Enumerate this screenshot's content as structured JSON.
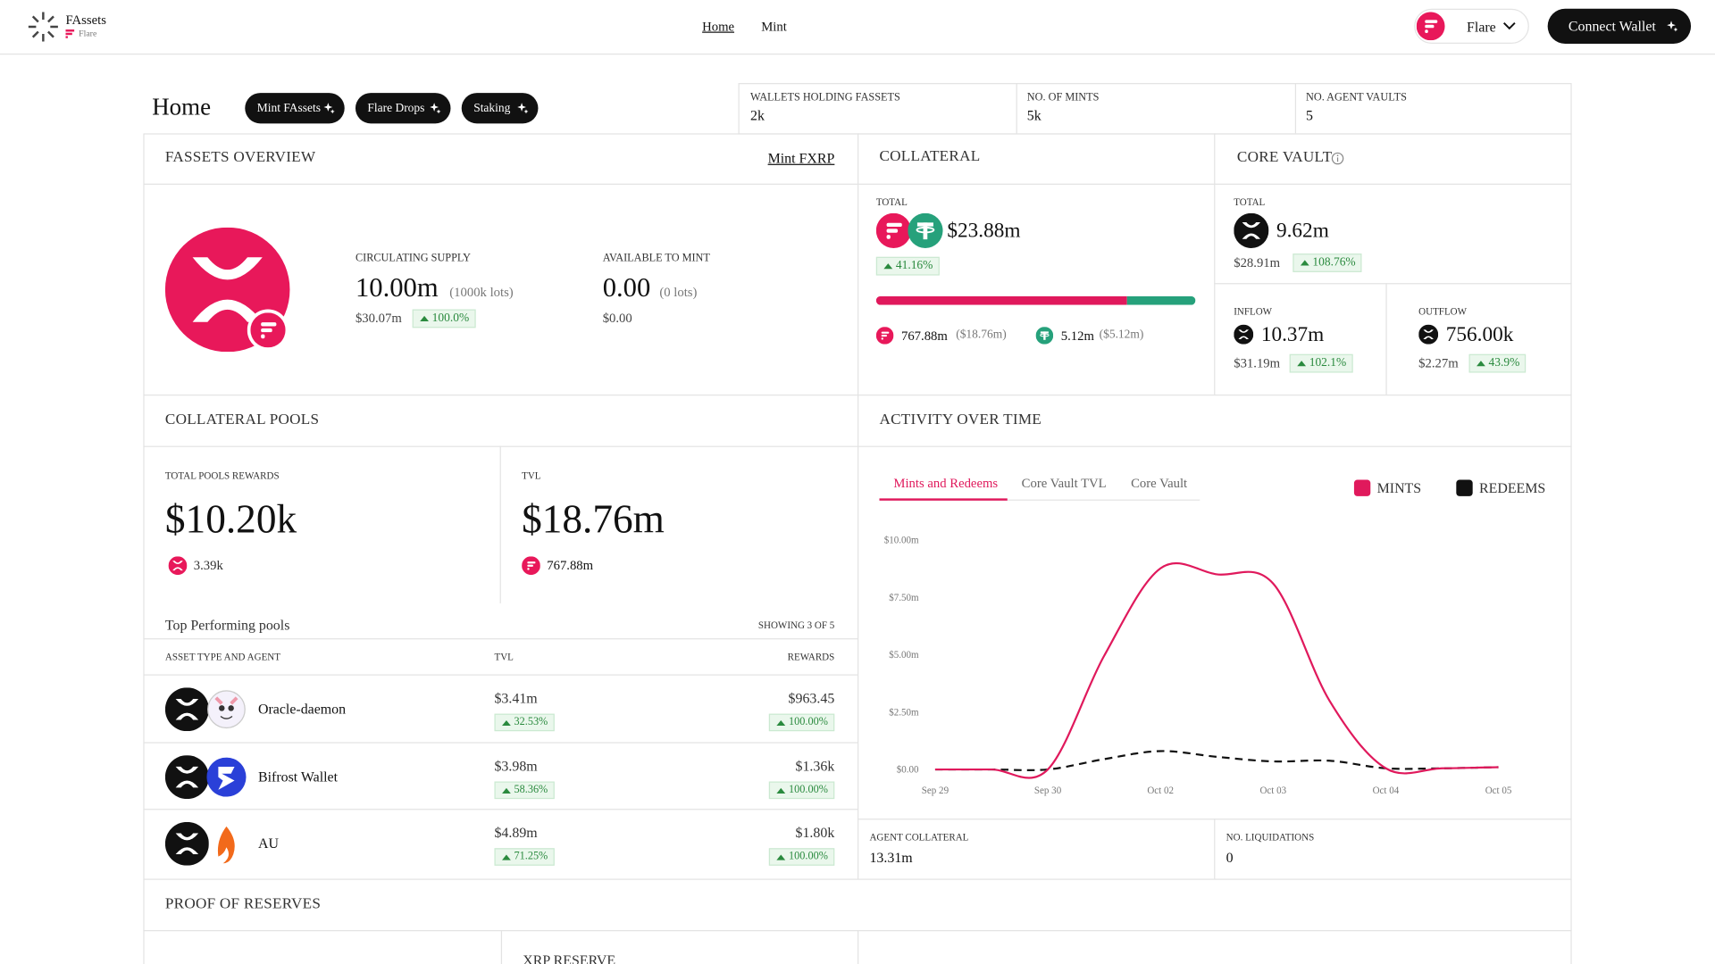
{
  "header": {
    "brand": "FAssets",
    "brand_sub": "Flare",
    "nav": [
      "Home",
      "Mint"
    ],
    "network": "Flare",
    "connect": "Connect Wallet"
  },
  "page": {
    "title": "Home",
    "actions": [
      "Mint FAssets",
      "Flare Drops",
      "Staking"
    ]
  },
  "stats": [
    {
      "label": "WALLETS HOLDING FASSETS",
      "value": "2k"
    },
    {
      "label": "NO. OF MINTS",
      "value": "5k"
    },
    {
      "label": "NO. AGENT VAULTS",
      "value": "5"
    }
  ],
  "overview": {
    "title": "FASSETS OVERVIEW",
    "link": "Mint FXRP",
    "circulating": {
      "label": "CIRCULATING SUPPLY",
      "value": "10.00m",
      "lots": "(1000k lots)",
      "usd": "$30.07m",
      "change": "100.0%"
    },
    "available": {
      "label": "AVAILABLE TO MINT",
      "value": "0.00",
      "lots": "(0 lots)",
      "usd": "$0.00"
    }
  },
  "collateral": {
    "title": "COLLATERAL",
    "total_label": "TOTAL",
    "total": "$23.88m",
    "change": "41.16%",
    "items": [
      {
        "amount": "767.88m",
        "usd": "($18.76m)",
        "share": 18.76
      },
      {
        "amount": "5.12m",
        "usd": "($5.12m)",
        "share": 5.12
      }
    ]
  },
  "core_vault": {
    "title": "CORE VAULT",
    "total_label": "TOTAL",
    "total": "9.62m",
    "usd": "$28.91m",
    "change": "108.76%",
    "inflow": {
      "label": "INFLOW",
      "value": "10.37m",
      "usd": "$31.19m",
      "change": "102.1%"
    },
    "outflow": {
      "label": "OUTFLOW",
      "value": "756.00k",
      "usd": "$2.27m",
      "change": "43.9%"
    }
  },
  "pools": {
    "title": "COLLATERAL POOLS",
    "rewards": {
      "label": "TOTAL POOLS REWARDS",
      "value": "$10.20k",
      "token": "3.39k"
    },
    "tvl": {
      "label": "TVL",
      "value": "$18.76m",
      "token": "767.88m"
    },
    "top_title": "Top Performing pools",
    "showing": "SHOWING 3 OF 5",
    "columns": [
      "ASSET TYPE AND AGENT",
      "TVL",
      "REWARDS"
    ],
    "rows": [
      {
        "name": "Oracle-daemon",
        "tvl": "$3.41m",
        "tvl_change": "32.53%",
        "rewards": "$963.45",
        "rewards_change": "100.00%"
      },
      {
        "name": "Bifrost Wallet",
        "tvl": "$3.98m",
        "tvl_change": "58.36%",
        "rewards": "$1.36k",
        "rewards_change": "100.00%"
      },
      {
        "name": "AU",
        "tvl": "$4.89m",
        "tvl_change": "71.25%",
        "rewards": "$1.80k",
        "rewards_change": "100.00%"
      }
    ]
  },
  "activity": {
    "title": "ACTIVITY OVER TIME",
    "tabs": [
      "Mints and Redeems",
      "Core Vault TVL",
      "Core Vault"
    ],
    "agent_collateral": {
      "label": "AGENT COLLATERAL",
      "value": "13.31m"
    },
    "liquidations": {
      "label": "NO. LIQUIDATIONS",
      "value": "0"
    }
  },
  "reserves": {
    "title": "PROOF OF RESERVES",
    "xrp_reserve": "XRP RESERVE"
  },
  "chart_data": {
    "type": "line",
    "categories": [
      "Sep 29",
      null,
      "Sep 30",
      null,
      "Oct 02",
      null,
      "Oct 03",
      null,
      "Oct 04",
      null,
      "Oct 05"
    ],
    "series": [
      {
        "name": "MINTS",
        "color": "#e0195c",
        "dashed": false,
        "values": [
          0,
          0,
          0,
          4.95,
          8.76,
          8.5,
          8.1,
          3.0,
          0.05,
          0.05,
          0.1
        ]
      },
      {
        "name": "REDEEMS",
        "color": "#111111",
        "dashed": true,
        "values": [
          0,
          0,
          0,
          0.45,
          0.8,
          0.55,
          0.35,
          0.38,
          0.05,
          0.05,
          0.1
        ]
      }
    ],
    "ylim": [
      0,
      10
    ],
    "yticks": [
      {
        "value": 0,
        "label": "$0.00"
      },
      {
        "value": 2.5,
        "label": "$2.50m"
      },
      {
        "value": 5,
        "label": "$5.00m"
      },
      {
        "value": 7.5,
        "label": "$7.50m"
      },
      {
        "value": 10,
        "label": "$10.00m"
      }
    ],
    "legend": "top-right"
  }
}
